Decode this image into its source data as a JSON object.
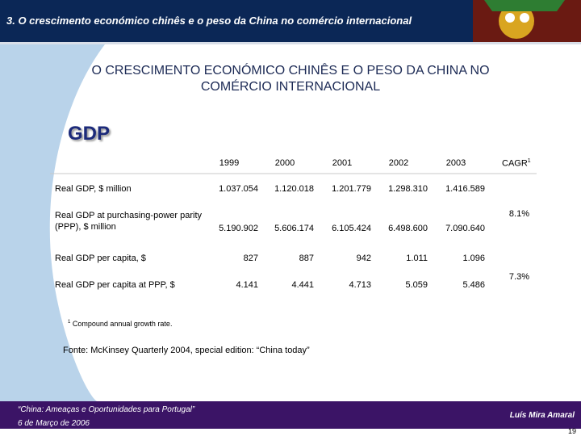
{
  "header": {
    "title": "3. O crescimento económico chinês e o peso da China no comércio internacional"
  },
  "slide": {
    "title": "O CRESCIMENTO ECONÓMICO CHINÊS E O PESO DA CHINA NO COMÉRCIO INTERNACIONAL",
    "section": "GDP"
  },
  "table": {
    "columns": [
      "1999",
      "2000",
      "2001",
      "2002",
      "2003"
    ],
    "cagr_header": "CAGR",
    "cagr_note": "1",
    "rows": [
      {
        "label": "Real GDP, $ million",
        "values": [
          "1.037.054",
          "1.120.018",
          "1.201.779",
          "1.298.310",
          "1.416.589"
        ]
      },
      {
        "label": "Real GDP at purchasing-power parity (PPP), $ million",
        "values": [
          "5.190.902",
          "5.606.174",
          "6.105.424",
          "6.498.600",
          "7.090.640"
        ]
      },
      {
        "label": "Real GDP per capita, $",
        "values": [
          "827",
          "887",
          "942",
          "1.011",
          "1.096"
        ]
      },
      {
        "label": "Real GDP per capita at PPP, $",
        "values": [
          "4.141",
          "4.441",
          "4.713",
          "5.059",
          "5.486"
        ]
      }
    ],
    "cagr": [
      "8.1%",
      "7.3%"
    ]
  },
  "footnote": {
    "marker": "1",
    "text": "Compound annual growth rate."
  },
  "source": "Fonte: McKinsey Quarterly 2004, special edition: “China today”",
  "footer": {
    "event": "“China: Ameaças e Oportunidades para Portugal”",
    "date": "6 de Março de 2006",
    "author": "Luís Mira Amaral",
    "page": "19"
  }
}
